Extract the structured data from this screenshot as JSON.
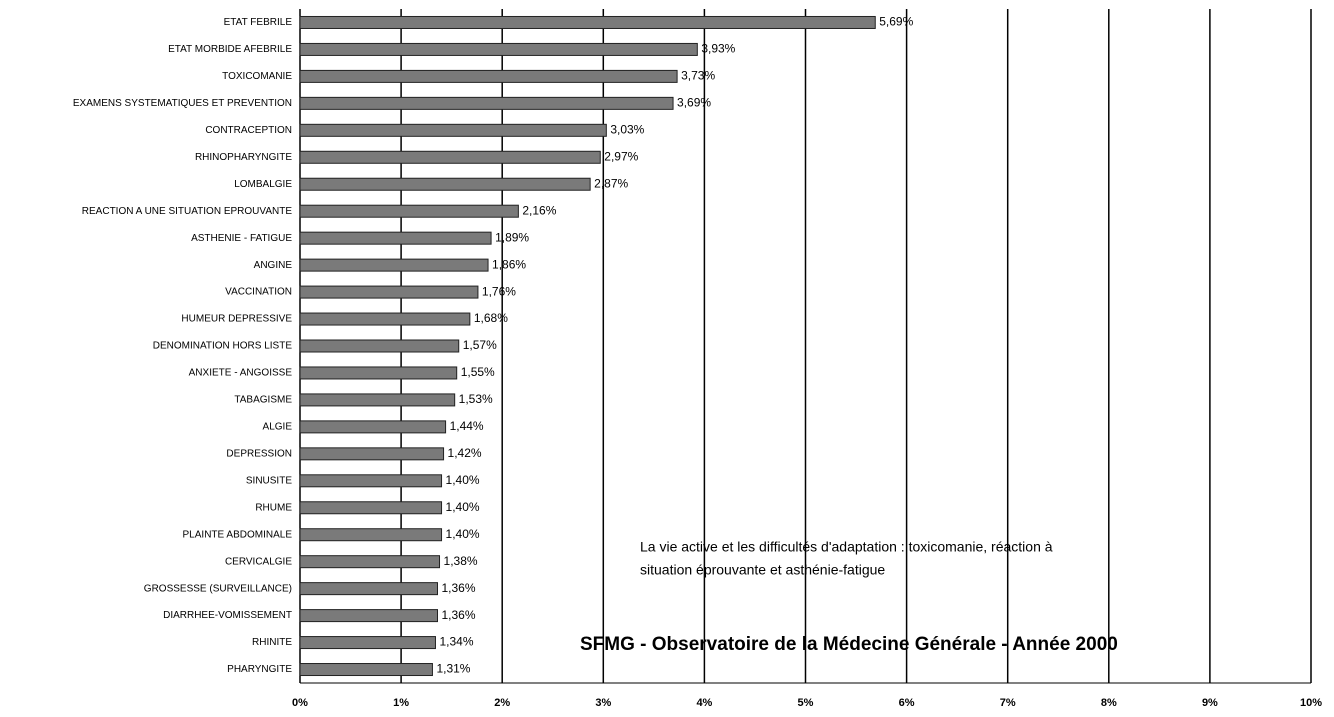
{
  "chart_data": {
    "type": "barh",
    "categories": [
      "ETAT FEBRILE",
      "ETAT MORBIDE AFEBRILE",
      "TOXICOMANIE",
      "EXAMENS SYSTEMATIQUES ET PREVENTION",
      "CONTRACEPTION",
      "RHINOPHARYNGITE",
      "LOMBALGIE",
      "REACTION A UNE SITUATION EPROUVANTE",
      "ASTHENIE - FATIGUE",
      "ANGINE",
      "VACCINATION",
      "HUMEUR DEPRESSIVE",
      "DENOMINATION HORS LISTE",
      "ANXIETE - ANGOISSE",
      "TABAGISME",
      "ALGIE",
      "DEPRESSION",
      "SINUSITE",
      "RHUME",
      "PLAINTE ABDOMINALE",
      "CERVICALGIE",
      "GROSSESSE (SURVEILLANCE)",
      "DIARRHEE-VOMISSEMENT",
      "RHINITE",
      "PHARYNGITE"
    ],
    "values": [
      5.69,
      3.93,
      3.73,
      3.69,
      3.03,
      2.97,
      2.87,
      2.16,
      1.89,
      1.86,
      1.76,
      1.68,
      1.57,
      1.55,
      1.53,
      1.44,
      1.42,
      1.4,
      1.4,
      1.4,
      1.38,
      1.36,
      1.36,
      1.34,
      1.31
    ],
    "value_labels": [
      "5,69%",
      "3,93%",
      "3,73%",
      "3,69%",
      "3,03%",
      "2,97%",
      "2,87%",
      "2,16%",
      "1,89%",
      "1,86%",
      "1,76%",
      "1,68%",
      "1,57%",
      "1,55%",
      "1,53%",
      "1,44%",
      "1,42%",
      "1,40%",
      "1,40%",
      "1,40%",
      "1,38%",
      "1,36%",
      "1,36%",
      "1,34%",
      "1,31%"
    ],
    "color": "#7a7a7a",
    "xlim": [
      0,
      10
    ],
    "xticks": [
      {
        "value": 0,
        "label": "0%"
      },
      {
        "value": 1,
        "label": "1%"
      },
      {
        "value": 2,
        "label": "2%"
      },
      {
        "value": 3,
        "label": "3%"
      },
      {
        "value": 4,
        "label": "4%"
      },
      {
        "value": 5,
        "label": "5%"
      },
      {
        "value": 6,
        "label": "6%"
      },
      {
        "value": 7,
        "label": "7%"
      },
      {
        "value": 8,
        "label": "8%"
      },
      {
        "value": 9,
        "label": "9%"
      },
      {
        "value": 10,
        "label": "10%"
      }
    ],
    "grid": true,
    "annotations": [
      "La vie active et les difficultés d'adaptation : toxicomanie, réaction à",
      "situation éprouvante et asthénie-fatigue",
      "SFMG - Observatoire de la Médecine Générale - Année 2000"
    ]
  }
}
